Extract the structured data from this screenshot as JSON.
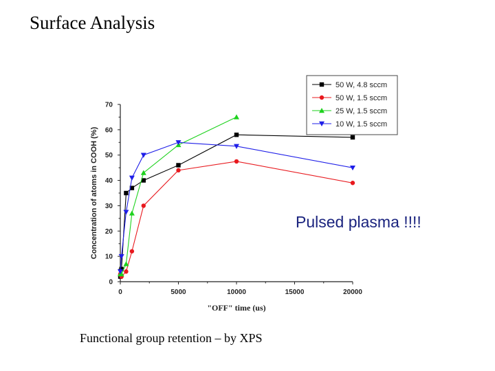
{
  "slide": {
    "title": "Surface Analysis",
    "caption": "Functional group retention – by XPS",
    "callout": "Pulsed plasma !!!!",
    "callout_color": "#1a237e"
  },
  "chart_data": {
    "type": "line",
    "title": "",
    "xlabel": "\"OFF\" time (us)",
    "ylabel": "Concentration of atoms in COOH (%)",
    "xlim": [
      0,
      20000
    ],
    "ylim": [
      0,
      70
    ],
    "xticks": [
      0,
      5000,
      10000,
      15000,
      20000
    ],
    "yticks": [
      0,
      10,
      20,
      30,
      40,
      50,
      60,
      70
    ],
    "legend_position": "top-right",
    "series": [
      {
        "name": "50 W, 4.8 sccm",
        "color": "#000000",
        "marker": "square",
        "x": [
          0,
          100,
          500,
          1000,
          2000,
          5000,
          10000,
          20000
        ],
        "y": [
          2,
          5,
          35,
          37,
          40,
          46,
          58,
          57
        ]
      },
      {
        "name": "50 W, 1.5 sccm",
        "color": "#e8191e",
        "marker": "circle",
        "x": [
          0,
          100,
          500,
          1000,
          2000,
          5000,
          10000,
          20000
        ],
        "y": [
          3,
          2,
          4,
          12,
          30,
          44,
          47.5,
          39
        ]
      },
      {
        "name": "25 W, 1.5 sccm",
        "color": "#1ed21e",
        "marker": "triangle-up",
        "x": [
          0,
          100,
          500,
          1000,
          2000,
          5000,
          10000
        ],
        "y": [
          3,
          3,
          7,
          27,
          43,
          54,
          65
        ]
      },
      {
        "name": "10 W, 1.5 sccm",
        "color": "#1e1ee8",
        "marker": "triangle-down",
        "x": [
          0,
          100,
          500,
          1000,
          2000,
          5000,
          10000,
          20000
        ],
        "y": [
          4,
          10,
          27.5,
          41,
          50,
          55,
          53.5,
          45
        ]
      }
    ]
  }
}
